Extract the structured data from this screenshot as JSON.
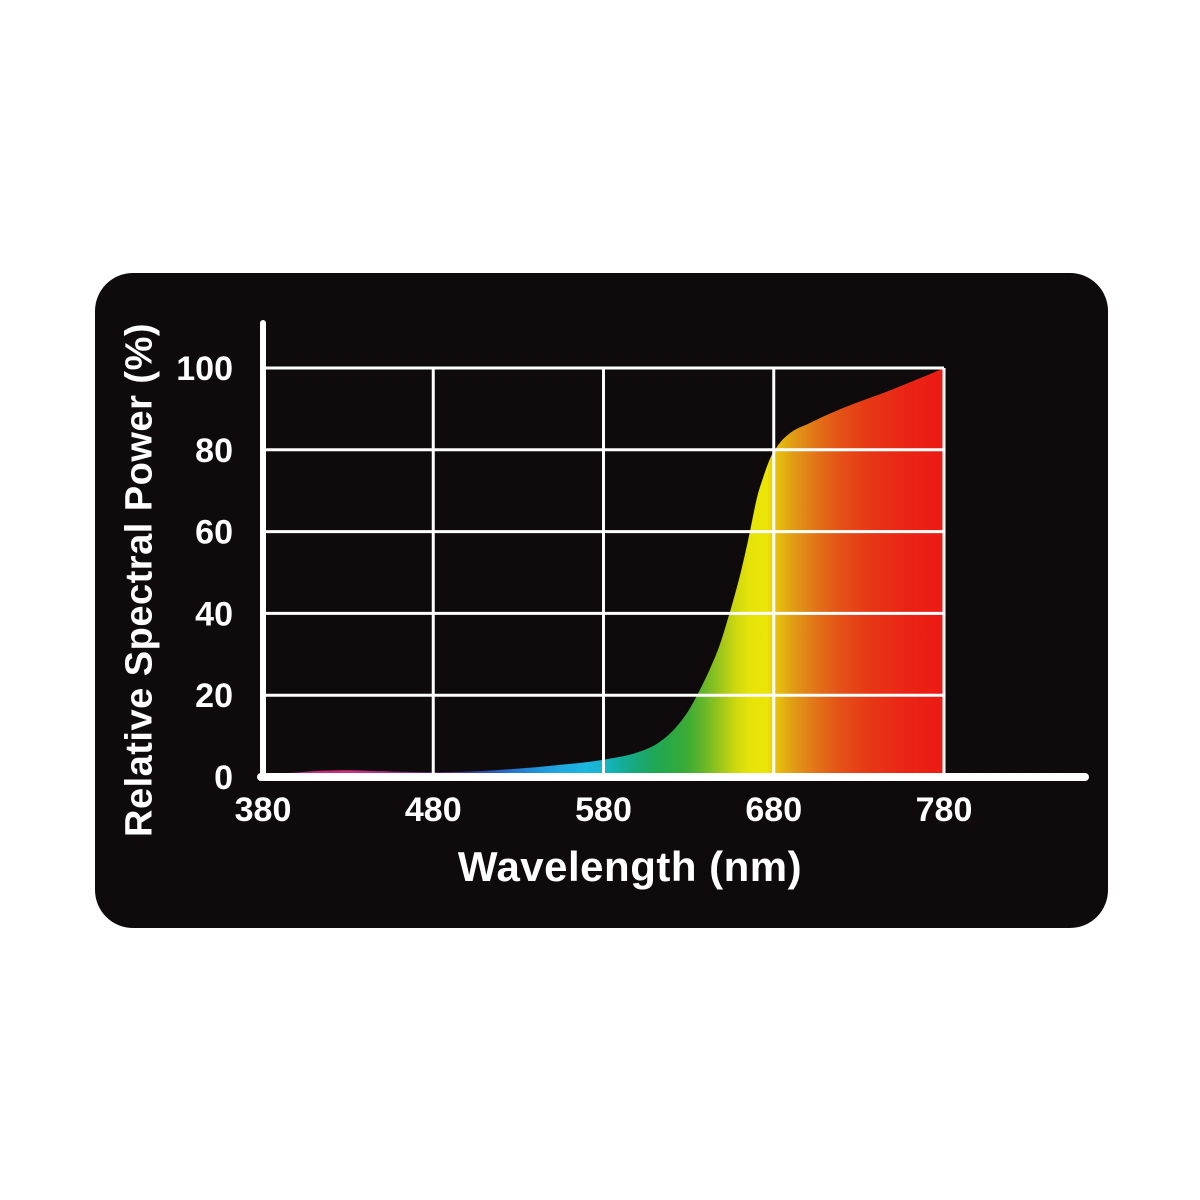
{
  "card": {
    "background_color": "#0F0B0C",
    "page_background_color": "#ffffff"
  },
  "chart_data": {
    "type": "area",
    "title": "",
    "xlabel": "Wavelength (nm)",
    "ylabel": "Relative Spectral Power (%)",
    "xlim": [
      380,
      780
    ],
    "ylim": [
      0,
      100
    ],
    "x_ticks": [
      380,
      480,
      580,
      680,
      780
    ],
    "x_tick_labels": [
      "380",
      "480",
      "580",
      "680",
      "780"
    ],
    "y_ticks": [
      0,
      20,
      40,
      60,
      80,
      100
    ],
    "y_tick_labels": [
      "0",
      "20",
      "40",
      "60",
      "80",
      "100"
    ],
    "grid": true,
    "legend": false,
    "axis_color": "#ffffff",
    "grid_color": "#ffffff",
    "text_color": "#ffffff",
    "series": [
      {
        "name": "relative-spectral-power",
        "points": [
          [
            380,
            0.2
          ],
          [
            390,
            0.8
          ],
          [
            400,
            1.1
          ],
          [
            410,
            1.45
          ],
          [
            420,
            1.6
          ],
          [
            430,
            1.65
          ],
          [
            440,
            1.55
          ],
          [
            455,
            1.35
          ],
          [
            470,
            1.2
          ],
          [
            480,
            1.15
          ],
          [
            495,
            1.25
          ],
          [
            510,
            1.5
          ],
          [
            525,
            1.9
          ],
          [
            540,
            2.4
          ],
          [
            555,
            3.0
          ],
          [
            565,
            3.4
          ],
          [
            575,
            3.9
          ],
          [
            585,
            4.6
          ],
          [
            595,
            5.4
          ],
          [
            605,
            6.8
          ],
          [
            612,
            8.3
          ],
          [
            620,
            11
          ],
          [
            628,
            15
          ],
          [
            635,
            20
          ],
          [
            642,
            26
          ],
          [
            648,
            32
          ],
          [
            654,
            40
          ],
          [
            660,
            49
          ],
          [
            665,
            58
          ],
          [
            670,
            68
          ],
          [
            674,
            73.5
          ],
          [
            678,
            78
          ],
          [
            682,
            80.8
          ],
          [
            686,
            82.8
          ],
          [
            692,
            84.8
          ],
          [
            700,
            86.3
          ],
          [
            710,
            88.3
          ],
          [
            720,
            90.1
          ],
          [
            730,
            91.7
          ],
          [
            740,
            93.2
          ],
          [
            750,
            94.8
          ],
          [
            760,
            96.5
          ],
          [
            770,
            98.2
          ],
          [
            780,
            100
          ]
        ]
      }
    ],
    "spectrum_gradient": [
      {
        "wavelength": 380,
        "color": "#8F1A5C"
      },
      {
        "wavelength": 400,
        "color": "#C02670"
      },
      {
        "wavelength": 415,
        "color": "#CB2B7A"
      },
      {
        "wavelength": 430,
        "color": "#CE2F7E"
      },
      {
        "wavelength": 450,
        "color": "#B52C86"
      },
      {
        "wavelength": 465,
        "color": "#95278E"
      },
      {
        "wavelength": 480,
        "color": "#6F2295"
      },
      {
        "wavelength": 495,
        "color": "#46309F"
      },
      {
        "wavelength": 510,
        "color": "#2F4DB4"
      },
      {
        "wavelength": 525,
        "color": "#2870CA"
      },
      {
        "wavelength": 540,
        "color": "#2292D9"
      },
      {
        "wavelength": 555,
        "color": "#1FA9DF"
      },
      {
        "wavelength": 570,
        "color": "#1CB7E0"
      },
      {
        "wavelength": 580,
        "color": "#16B5C6"
      },
      {
        "wavelength": 592,
        "color": "#14AC95"
      },
      {
        "wavelength": 604,
        "color": "#1BA868"
      },
      {
        "wavelength": 616,
        "color": "#25A74A"
      },
      {
        "wavelength": 630,
        "color": "#3FAC34"
      },
      {
        "wavelength": 640,
        "color": "#6CB827"
      },
      {
        "wavelength": 650,
        "color": "#A5C81A"
      },
      {
        "wavelength": 658,
        "color": "#D0D90F"
      },
      {
        "wavelength": 666,
        "color": "#E6E309"
      },
      {
        "wavelength": 676,
        "color": "#EBE607"
      },
      {
        "wavelength": 682,
        "color": "#E6C00E"
      },
      {
        "wavelength": 692,
        "color": "#E09A15"
      },
      {
        "wavelength": 704,
        "color": "#E27618"
      },
      {
        "wavelength": 718,
        "color": "#E45318"
      },
      {
        "wavelength": 735,
        "color": "#E73816"
      },
      {
        "wavelength": 758,
        "color": "#EA2415"
      },
      {
        "wavelength": 780,
        "color": "#ED1A14"
      }
    ]
  }
}
